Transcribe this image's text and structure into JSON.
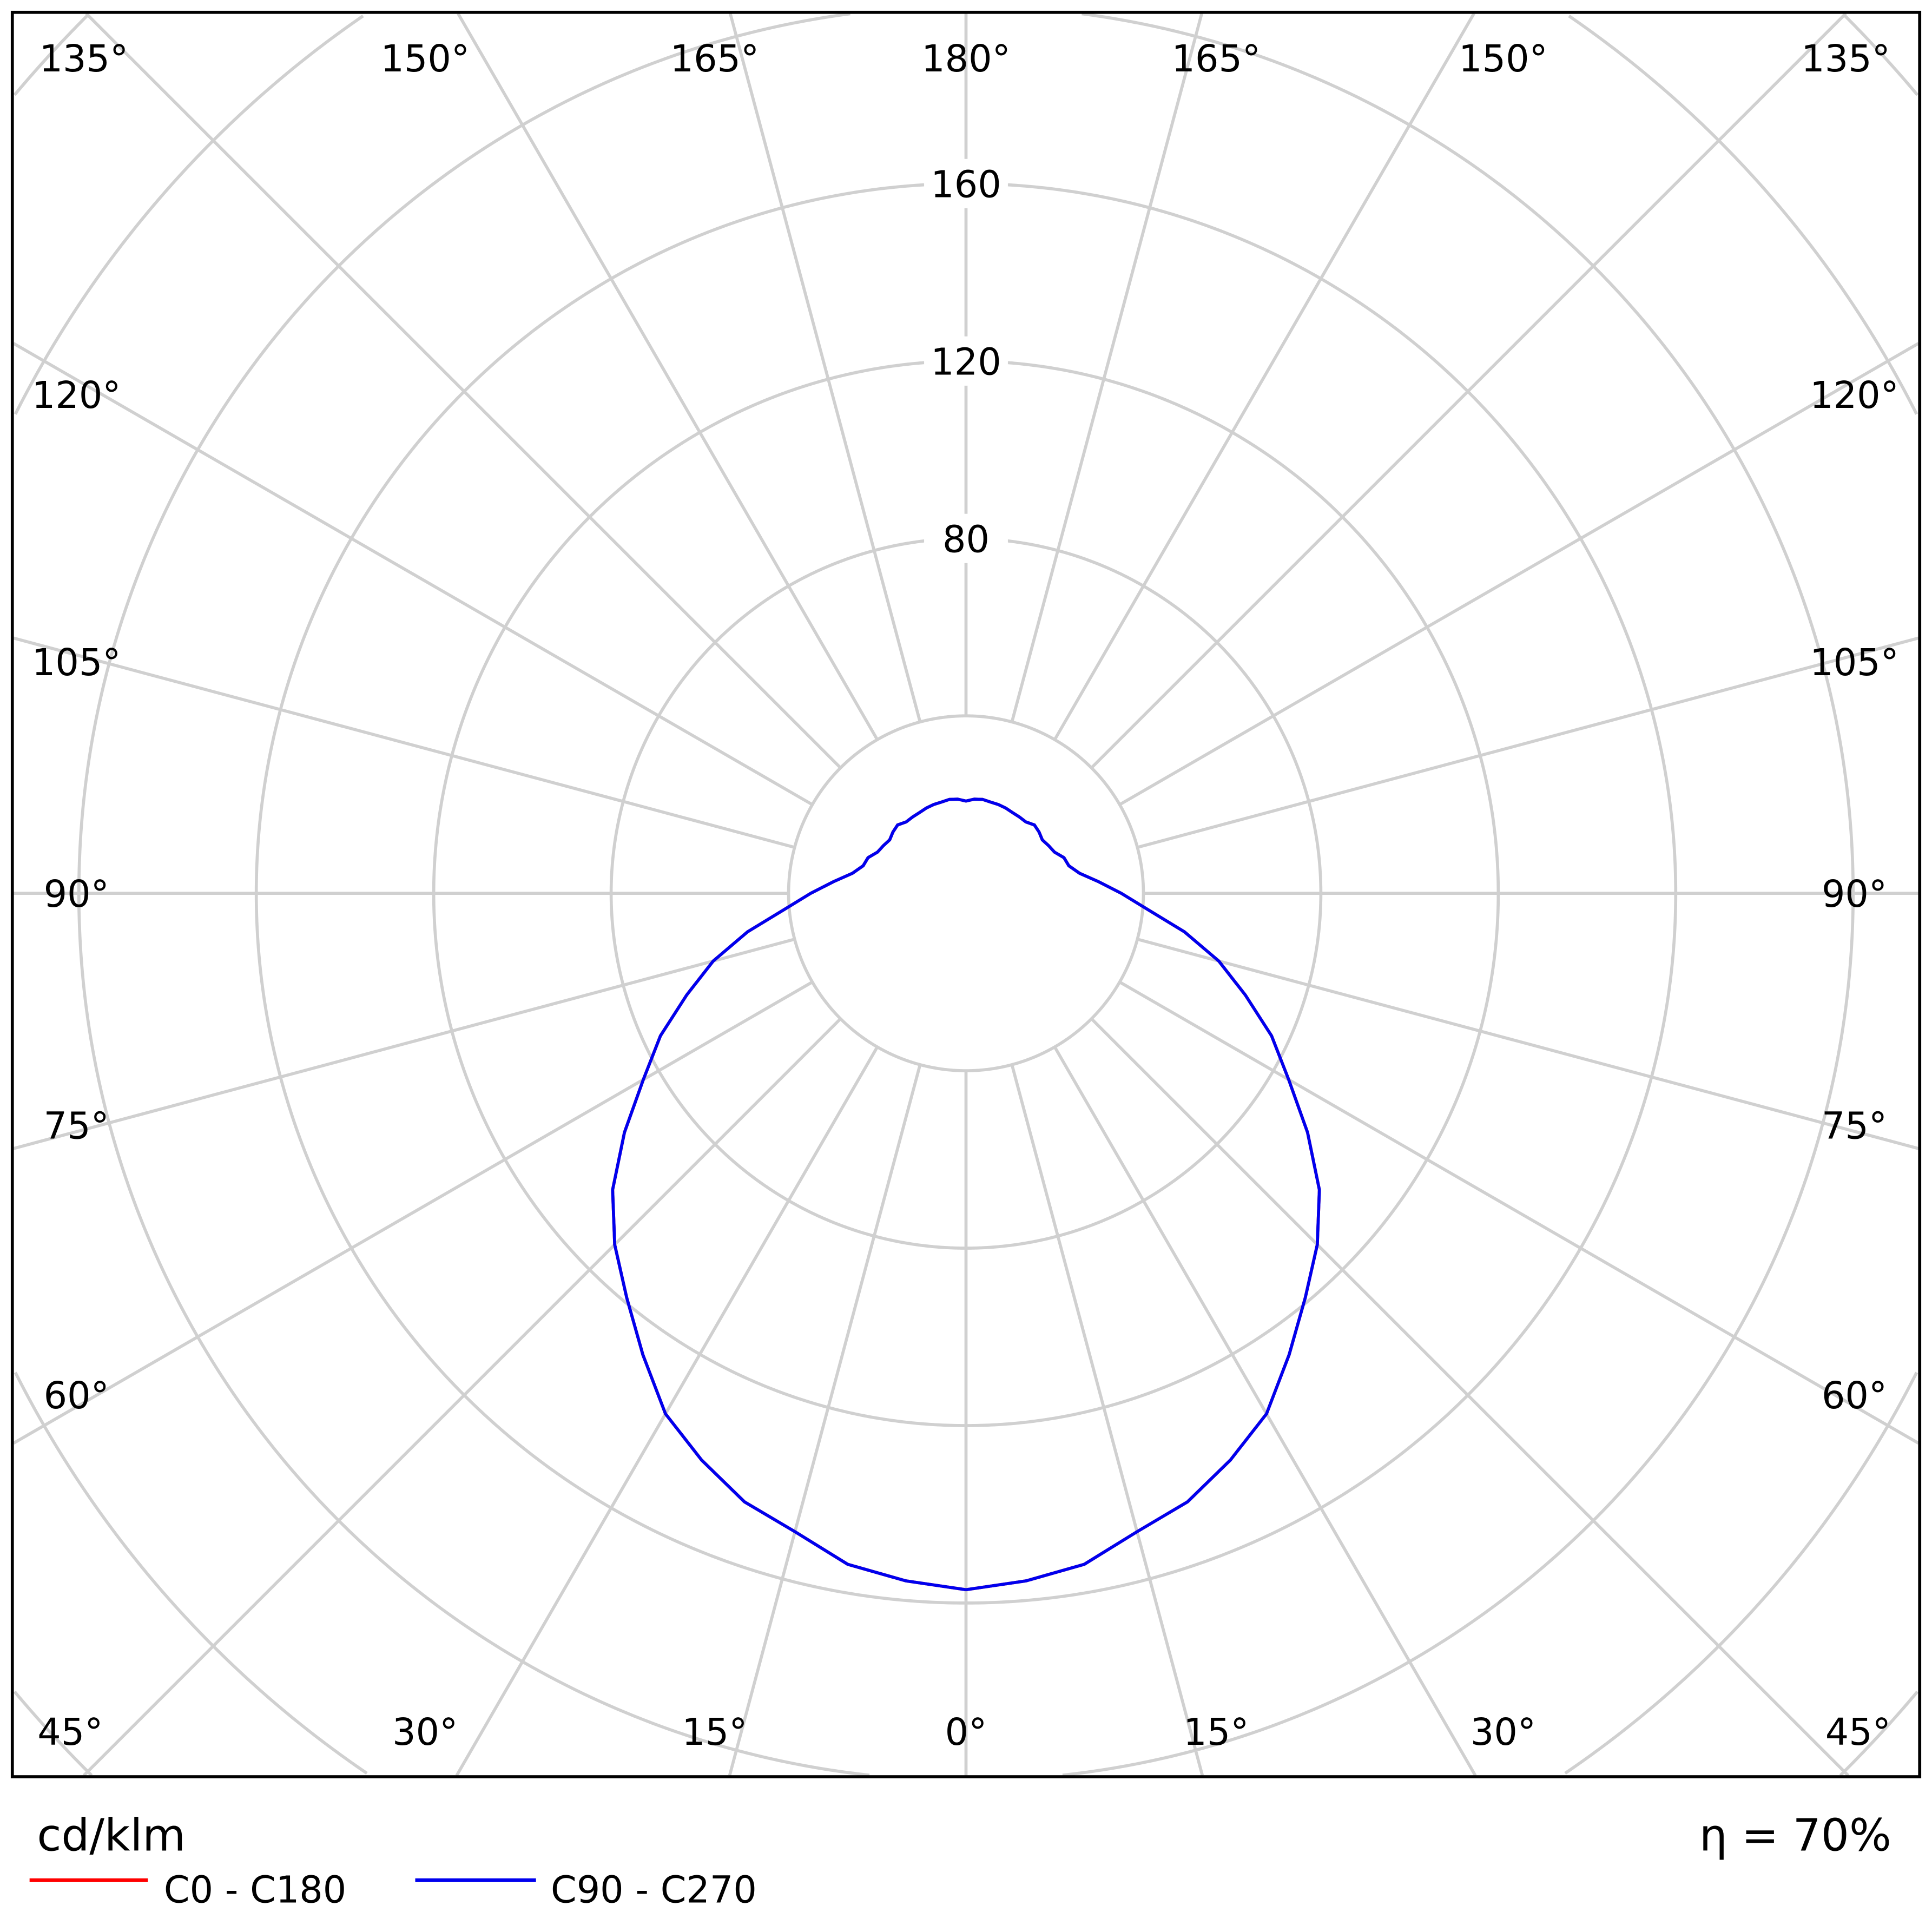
{
  "chart_data": {
    "type": "polar",
    "unit_label": "cd/klm",
    "efficiency_label": "η = 70%",
    "radial_ticks": [
      80,
      120,
      160
    ],
    "radial_grid": [
      40,
      80,
      120,
      160,
      200,
      240,
      280
    ],
    "angle_labels": {
      "top": [
        "135°",
        "150°",
        "165°",
        "180°",
        "165°",
        "150°",
        "135°"
      ],
      "left": [
        "120°",
        "105°",
        "90°",
        "75°",
        "60°"
      ],
      "right": [
        "120°",
        "105°",
        "90°",
        "75°",
        "60°"
      ],
      "bottom": [
        "45°",
        "30°",
        "15°",
        "0°",
        "15°",
        "30°",
        "45°"
      ]
    },
    "angles": [
      0,
      5,
      10,
      15,
      20,
      25,
      30,
      35,
      40,
      45,
      50,
      55,
      60,
      65,
      70,
      75,
      80,
      85,
      90,
      95,
      100,
      105,
      110,
      115,
      120,
      125,
      130,
      135,
      140,
      145,
      150,
      155,
      160,
      165,
      170,
      175,
      180
    ],
    "series": [
      {
        "name": "C0 - C180",
        "color": "#ff0000",
        "values": [
          157,
          155.6,
          153.6,
          149,
          146,
          141,
          135.5,
          127,
          119,
          112,
          104,
          94,
          84,
          76,
          67,
          59,
          50,
          41,
          35,
          30,
          26,
          24,
          23.5,
          22,
          21.5,
          21,
          21.5,
          21.8,
          21,
          21,
          21,
          21.2,
          21.3,
          21.3,
          21.5,
          21.3,
          20.8
        ]
      },
      {
        "name": "C90 - C270",
        "color": "#0000ee",
        "values": [
          157,
          155.6,
          153.6,
          149,
          146,
          141,
          135.5,
          127,
          119,
          112,
          104,
          94,
          84,
          76,
          67,
          59,
          50,
          41,
          35,
          30,
          26,
          24,
          23.5,
          22,
          21.5,
          21,
          21.5,
          21.8,
          21,
          21,
          21,
          21.2,
          21.3,
          21.3,
          21.5,
          21.3,
          20.8
        ]
      }
    ],
    "grid_color": "#d0d0d0"
  }
}
